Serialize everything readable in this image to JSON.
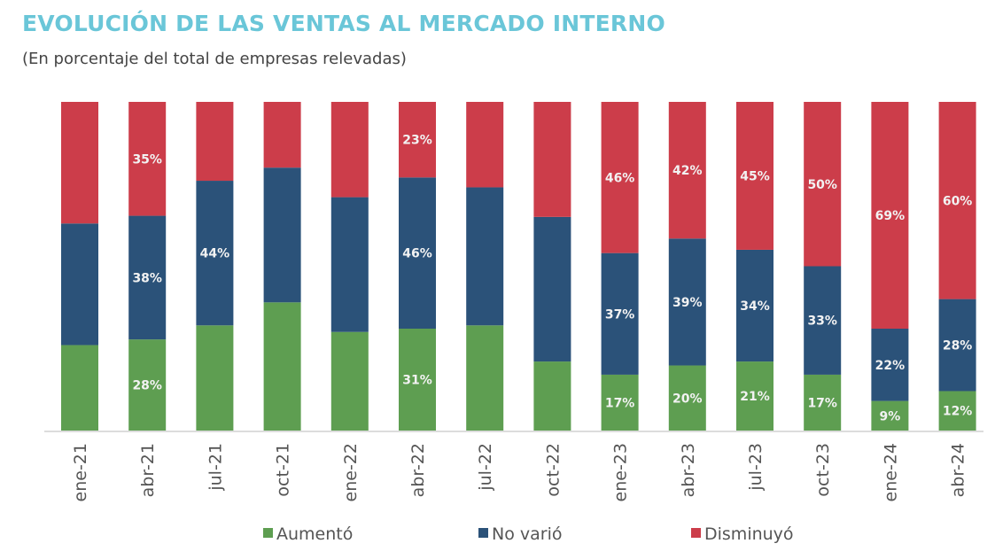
{
  "chart_data": {
    "type": "bar",
    "stacked": true,
    "percent_stacked": true,
    "title": "EVOLUCIÓN DE LAS VENTAS AL MERCADO INTERNO",
    "subtitle": "(En porcentaje del total de empresas relevadas)",
    "xlabel": "",
    "ylabel": "",
    "ylim": [
      0,
      100
    ],
    "grid": false,
    "legend_position": "bottom",
    "categories": [
      "ene-21",
      "abr-21",
      "jul-21",
      "oct-21",
      "ene-22",
      "abr-22",
      "jul-22",
      "oct-22",
      "ene-23",
      "abr-23",
      "jul-23",
      "oct-23",
      "ene-24",
      "abr-24"
    ],
    "series": [
      {
        "name": "Aumentó",
        "color": "#5e9e51",
        "values": [
          26,
          28,
          32,
          39,
          30,
          31,
          32,
          21,
          17,
          20,
          21,
          17,
          9,
          12
        ],
        "labels": [
          null,
          "28%",
          null,
          null,
          null,
          "31%",
          null,
          null,
          "17%",
          "20%",
          "21%",
          "17%",
          "9%",
          "12%"
        ]
      },
      {
        "name": "No varió",
        "color": "#2b5279",
        "values": [
          37,
          38,
          44,
          41,
          41,
          46,
          42,
          44,
          37,
          39,
          34,
          33,
          22,
          28
        ],
        "labels": [
          null,
          "38%",
          "44%",
          null,
          null,
          "46%",
          null,
          null,
          "37%",
          "39%",
          "34%",
          "33%",
          "22%",
          "28%"
        ]
      },
      {
        "name": "Disminuyó",
        "color": "#cc3d4a",
        "values": [
          37,
          35,
          24,
          20,
          29,
          23,
          26,
          35,
          46,
          42,
          45,
          50,
          69,
          60
        ],
        "labels": [
          null,
          "35%",
          null,
          null,
          null,
          "23%",
          null,
          null,
          "46%",
          "42%",
          "45%",
          "50%",
          "69%",
          "60%"
        ]
      }
    ]
  }
}
